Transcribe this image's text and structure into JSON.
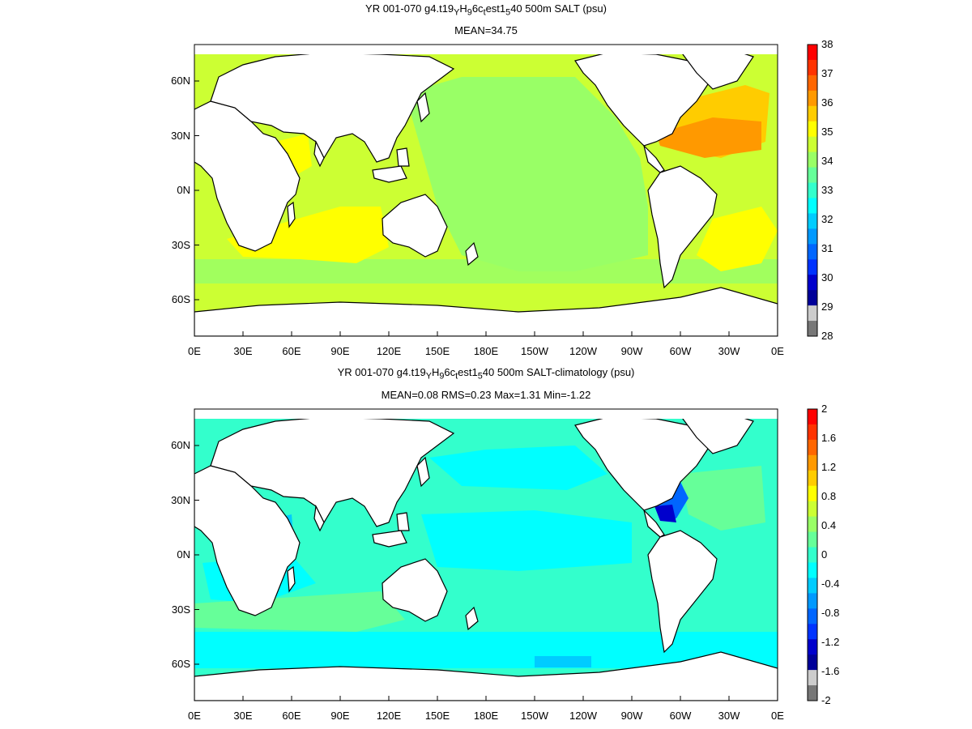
{
  "maps": [
    {
      "title_pre": "YR 001-070 g4.t19",
      "title_var": "SALT (psu)",
      "subtitle": "MEAN=34.75",
      "colorbar": {
        "ticks": [
          "38",
          "37",
          "36",
          "35",
          "34",
          "33",
          "32",
          "31",
          "30",
          "29",
          "28"
        ],
        "colors": [
          "#ff0000",
          "#ff3300",
          "#ff6600",
          "#ff9900",
          "#ffcc00",
          "#ffff00",
          "#ccff33",
          "#99ff66",
          "#66ff99",
          "#33ffcc",
          "#00ffff",
          "#00ccff",
          "#0099ff",
          "#0066ff",
          "#0033ff",
          "#0000cc",
          "#000099",
          "#cccccc",
          "#777777"
        ]
      }
    },
    {
      "title_pre": "YR 001-070 g4.t19",
      "title_var": "SALT-climatology (psu)",
      "subtitle": "MEAN=0.08   RMS=0.23   Max=1.31   Min=-1.22",
      "colorbar": {
        "ticks": [
          "2",
          "1.6",
          "1.2",
          "0.8",
          "0.4",
          "0",
          "-0.4",
          "-0.8",
          "-1.2",
          "-1.6",
          "-2"
        ],
        "colors": [
          "#ff0000",
          "#ff3300",
          "#ff6600",
          "#ff9900",
          "#ffcc00",
          "#ffff00",
          "#ccff33",
          "#99ff66",
          "#66ff99",
          "#33ffcc",
          "#00ffff",
          "#00ccff",
          "#0099ff",
          "#0066ff",
          "#0033ff",
          "#0000cc",
          "#000099",
          "#cccccc",
          "#777777"
        ]
      }
    }
  ],
  "title_parts": {
    "sub1": "Y",
    "mid1": "H",
    "sub2": "9",
    "mid2": "6c",
    "sub3": "t",
    "mid3": "est1",
    "sub4": "5",
    "mid4": "40 500m"
  },
  "x_ticks": [
    "0E",
    "30E",
    "60E",
    "90E",
    "120E",
    "150E",
    "180E",
    "150W",
    "120W",
    "90W",
    "60W",
    "30W",
    "0E"
  ],
  "y_ticks": [
    "60N",
    "30N",
    "0N",
    "30S",
    "60S"
  ]
}
